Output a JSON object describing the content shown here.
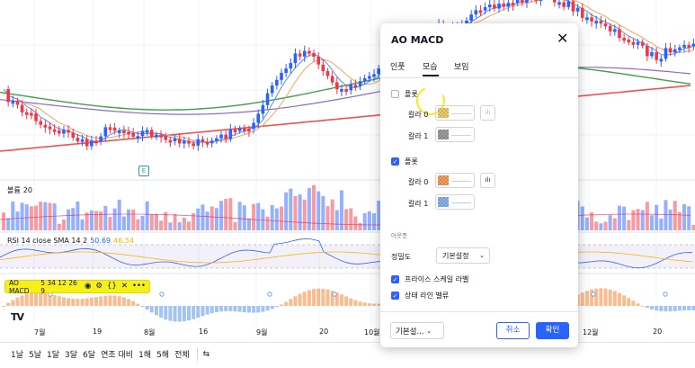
{
  "chart": {
    "volume_label": "볼륨",
    "volume_value": "20",
    "rsi_label": "RSI 14 close SMA 14 2",
    "rsi_value": "50.69",
    "rsi_sma_value": "46.54",
    "rsi_value_color": "#2962ff",
    "rsi_sma_color": "#f0b90b",
    "earnings_flag": "E",
    "logo": "TV",
    "up_color": "#2962ff",
    "down_color": "#f23645"
  },
  "indicator": {
    "name": "AO MACD",
    "params": "5 34 12 26 9",
    "icons": [
      "eye-icon",
      "settings-icon",
      "source-code-icon",
      "close-icon",
      "more-icon"
    ],
    "highlight_color": "#f5f019"
  },
  "time_axis": [
    "7월",
    "19",
    "8월",
    "16",
    "9월",
    "20",
    "10월",
    "12월",
    "20"
  ],
  "range_bar": {
    "items": [
      "1날",
      "5날",
      "1달",
      "3달",
      "6달",
      "연조 대비",
      "1해",
      "5해",
      "전체"
    ],
    "compare_icon": "compare-icon"
  },
  "dialog": {
    "title": "AO MACD",
    "close_icon": "close-icon",
    "tabs": [
      "인풋",
      "모습",
      "보임"
    ],
    "active_tab": "모습",
    "plot1": {
      "label": "플롯",
      "checked": false,
      "color0_label": "칼라 0",
      "color1_label": "칼라 1",
      "color0": "#f0cf6b",
      "color1": "#9e9e9e",
      "style_icon": "bar-chart-icon"
    },
    "plot2": {
      "label": "플롯",
      "checked": true,
      "color0_label": "칼라 0",
      "color1_label": "칼라 1",
      "color0": "#f5a05e",
      "color1": "#8cb4f0",
      "style_icon": "histogram-icon"
    },
    "output_section": "아웃풋",
    "precision_label": "정밀도",
    "precision_value": "기본설정",
    "price_scale_label": "프라이스 스케일 라벨",
    "price_scale_checked": true,
    "status_line_label": "상태 라인 밸류",
    "status_line_checked": true,
    "defaults_button": "기본설...",
    "cancel_button": "취소",
    "ok_button": "확인"
  }
}
